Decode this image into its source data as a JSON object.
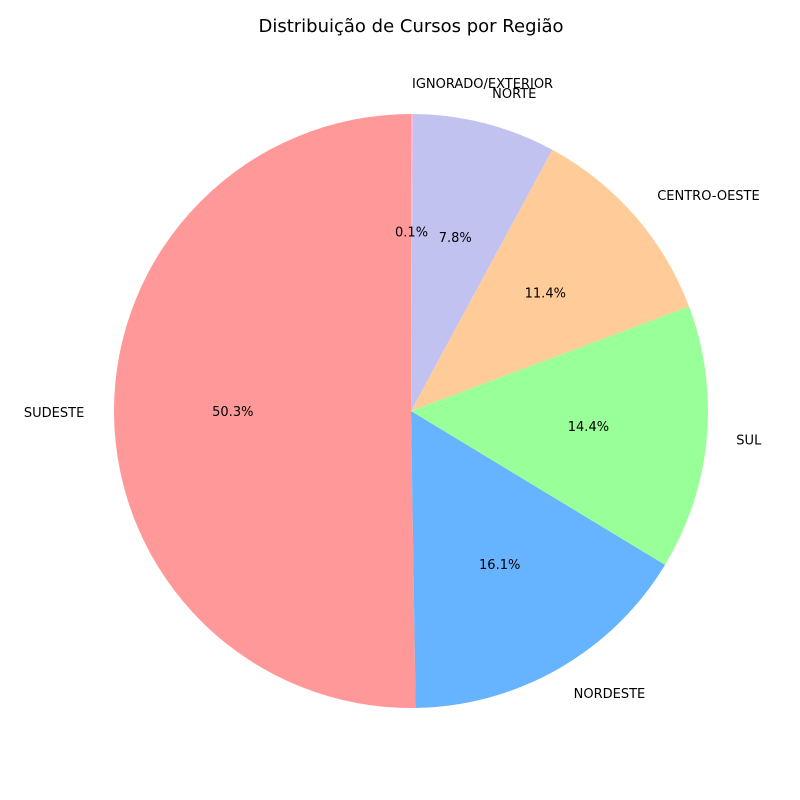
{
  "chart_data": {
    "type": "pie",
    "title": "Distribuição de Cursos por Região",
    "start_angle_deg": 90,
    "direction": "counterclockwise",
    "slices": [
      {
        "label": "SUDESTE",
        "value": 50.3,
        "pct_label": "50.3%",
        "color": "#ff9999"
      },
      {
        "label": "NORDESTE",
        "value": 16.1,
        "pct_label": "16.1%",
        "color": "#66b3ff"
      },
      {
        "label": "SUL",
        "value": 14.4,
        "pct_label": "14.4%",
        "color": "#99ff99"
      },
      {
        "label": "CENTRO-OESTE",
        "value": 11.4,
        "pct_label": "11.4%",
        "color": "#ffcc99"
      },
      {
        "label": "NORTE",
        "value": 7.8,
        "pct_label": "7.8%",
        "color": "#c2c2f0"
      },
      {
        "label": "IGNORADO/EXTERIOR",
        "value": 0.1,
        "pct_label": "0.1%",
        "color": "#ffb3e6"
      }
    ]
  }
}
